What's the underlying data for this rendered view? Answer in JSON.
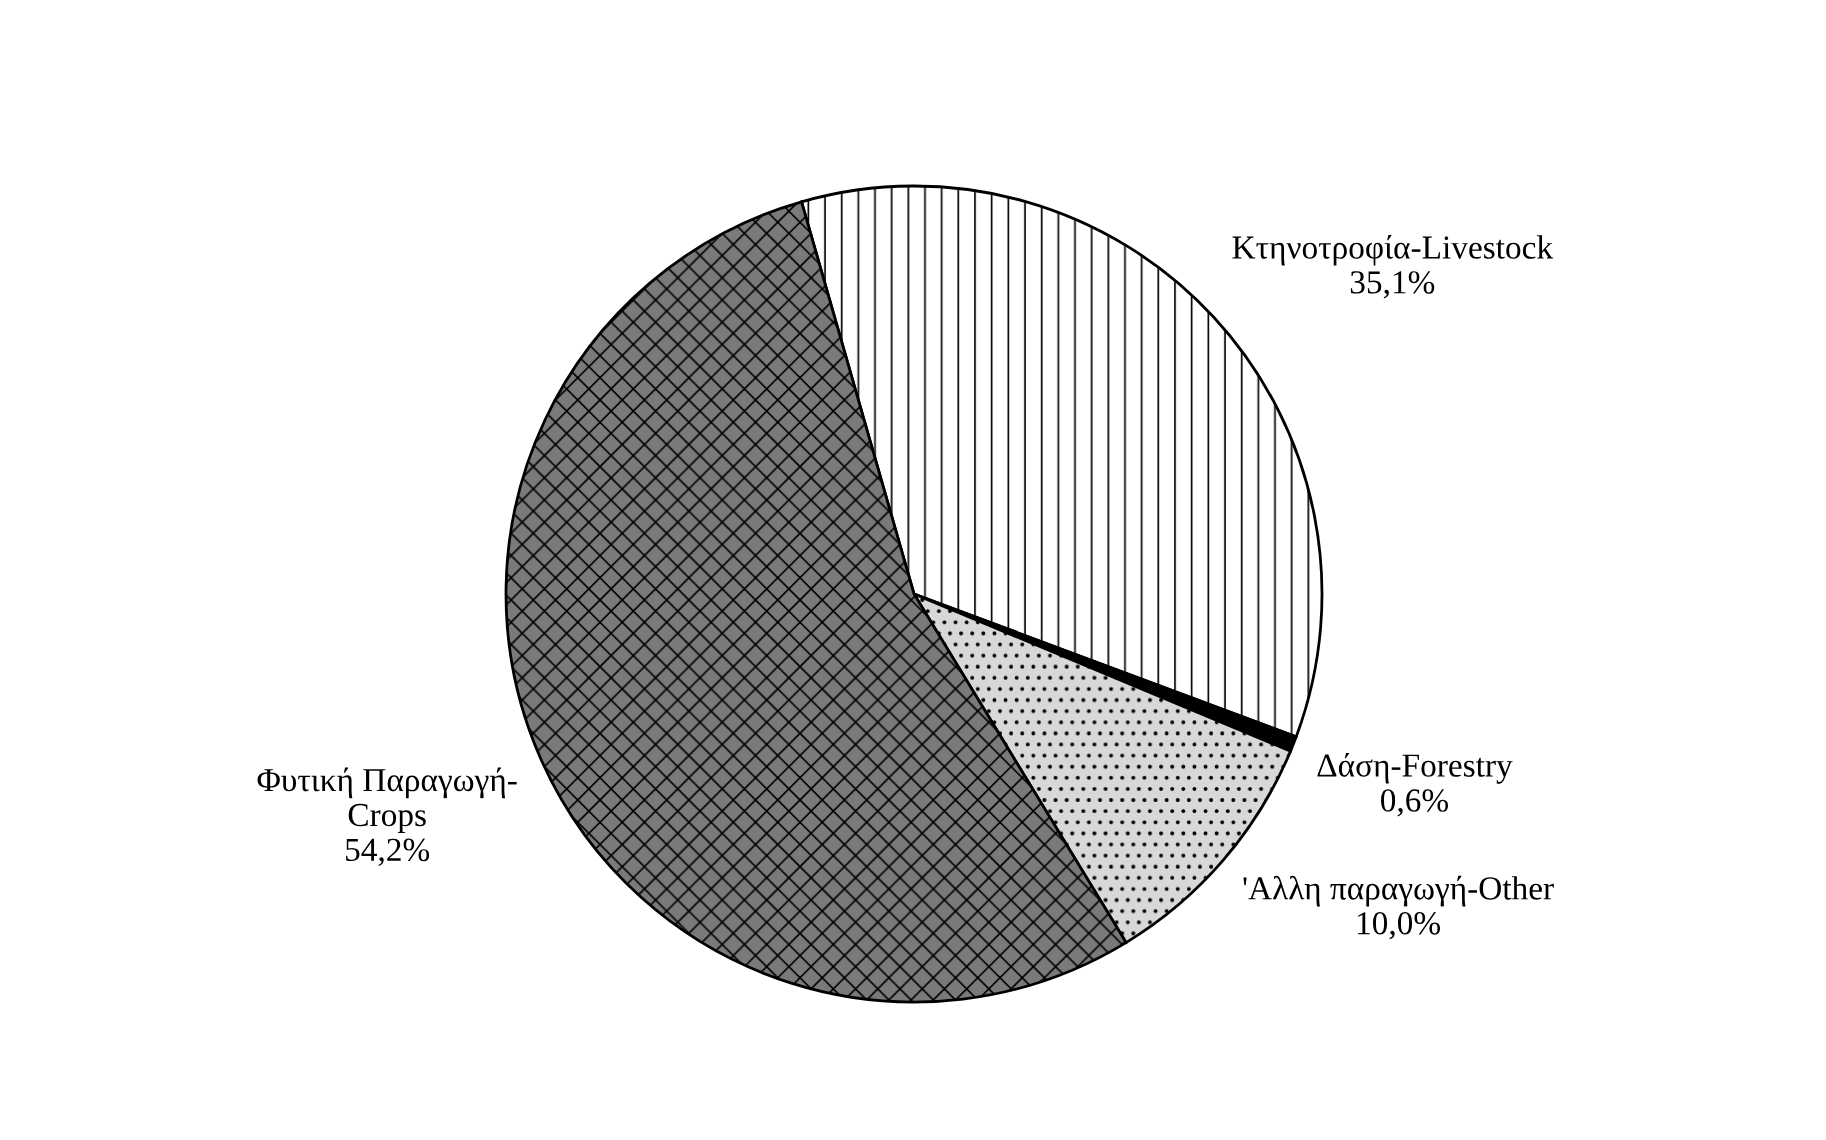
{
  "chart_data": {
    "type": "pie",
    "categories": [
      "Κτηνοτροφία-Livestock",
      "Δάση-Forestry",
      "'Αλλη παραγωγή-Other",
      "Φυτική Παραγωγή-\nCrops"
    ],
    "values": [
      35.1,
      0.6,
      10.0,
      54.2
    ],
    "value_labels": [
      "35,1%",
      "0,6%",
      "10,0%",
      "54,2%"
    ],
    "colors": [
      "#ffffff",
      "#000000",
      "#d8d8d8",
      "#7a7a7a"
    ]
  }
}
